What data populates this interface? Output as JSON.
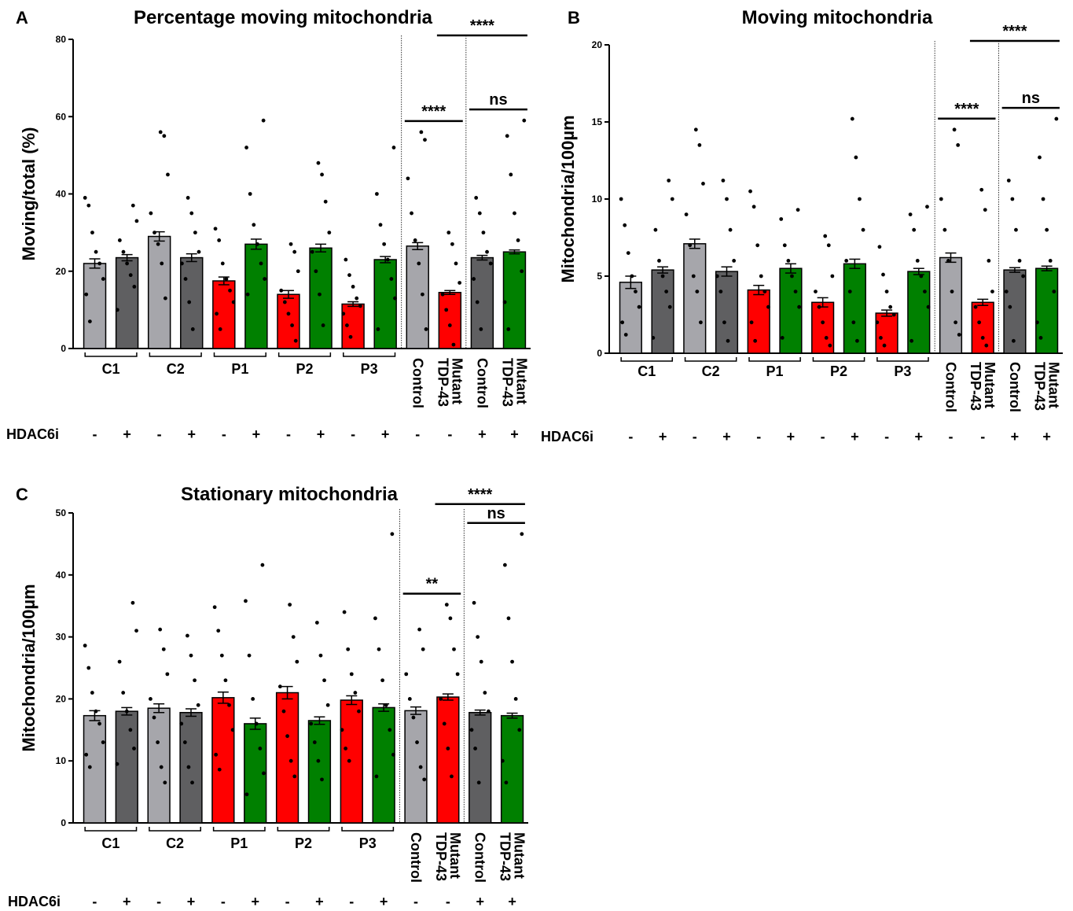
{
  "chart_data": [
    {
      "type": "bar",
      "panel": "A",
      "title": "Percentage moving mitochondria",
      "y_label": "Moving/total (%)",
      "ylim": [
        0,
        80
      ],
      "yticks": [
        0,
        20,
        40,
        60,
        80
      ],
      "groups": [
        "C1",
        "C2",
        "P1",
        "P2",
        "P3"
      ],
      "categories": [
        null,
        null,
        null,
        null,
        null,
        null,
        null,
        null,
        null,
        null,
        [
          "Control"
        ],
        [
          "Mutant",
          "TDP-43"
        ],
        [
          "Control"
        ],
        [
          "Mutant",
          "TDP-43"
        ]
      ],
      "hdac_label": "HDAC6i",
      "hdac6i": [
        "-",
        "+",
        "-",
        "+",
        "-",
        "+",
        "-",
        "+",
        "-",
        "+",
        "-",
        "-",
        "+",
        "+"
      ],
      "colors": [
        "#a6a6ab",
        "#5f5f61",
        "#a6a6ab",
        "#5f5f61",
        "#ff0000",
        "#008000",
        "#ff0000",
        "#008000",
        "#ff0000",
        "#008000",
        "#a6a6ab",
        "#ff0000",
        "#5f5f61",
        "#008000"
      ],
      "values": [
        22,
        23.5,
        29,
        23.5,
        17.5,
        27,
        14,
        26,
        11.5,
        23,
        26.5,
        14.5,
        23.5,
        25
      ],
      "errors": [
        1.2,
        0.8,
        1.2,
        1,
        1,
        1.3,
        1,
        1,
        0.6,
        0.8,
        0.9,
        0.5,
        0.6,
        0.5
      ],
      "points": [
        [
          39,
          37,
          30,
          25,
          22,
          18,
          14,
          7
        ],
        [
          37,
          33,
          28,
          25,
          22,
          19,
          16,
          10
        ],
        [
          56,
          55,
          45,
          35,
          30,
          27,
          22,
          13
        ],
        [
          39,
          35,
          30,
          25,
          22,
          18,
          12,
          5
        ],
        [
          31,
          28,
          22,
          18,
          15,
          12,
          9,
          5
        ],
        [
          59,
          52,
          40,
          32,
          27,
          22,
          18,
          14
        ],
        [
          27,
          25,
          20,
          15,
          12,
          9,
          6,
          2
        ],
        [
          48,
          45,
          38,
          30,
          25,
          20,
          14,
          6
        ],
        [
          23,
          19,
          16,
          13,
          11,
          9,
          6,
          3
        ],
        [
          52,
          40,
          32,
          27,
          23,
          18,
          13,
          5
        ],
        [
          56,
          54,
          44,
          35,
          28,
          22,
          14,
          5
        ],
        [
          30,
          27,
          22,
          17,
          14,
          10,
          6,
          1
        ],
        [
          39,
          35,
          30,
          25,
          22,
          18,
          12,
          5
        ],
        [
          59,
          55,
          45,
          35,
          28,
          20,
          12,
          5
        ]
      ],
      "annotations": [
        {
          "text": "****",
          "from": 10,
          "to": 11
        },
        {
          "text": "ns",
          "from": 12,
          "to": 13
        },
        {
          "text": "****",
          "from": 11,
          "to": 13
        }
      ]
    },
    {
      "type": "bar",
      "panel": "B",
      "title": "Moving mitochondria",
      "y_label": "Mitochondria/100µm",
      "ylim": [
        0,
        20
      ],
      "yticks": [
        0,
        5,
        10,
        15,
        20
      ],
      "groups": [
        "C1",
        "C2",
        "P1",
        "P2",
        "P3"
      ],
      "categories": [
        null,
        null,
        null,
        null,
        null,
        null,
        null,
        null,
        null,
        null,
        [
          "Control"
        ],
        [
          "Mutant",
          "TDP-43"
        ],
        [
          "Control"
        ],
        [
          "Mutant",
          "TDP-43"
        ]
      ],
      "hdac_label": "HDAC6i",
      "hdac6i": [
        "-",
        "+",
        "-",
        "+",
        "-",
        "+",
        "-",
        "+",
        "-",
        "+",
        "-",
        "-",
        "+",
        "+"
      ],
      "colors": [
        "#a6a6ab",
        "#5f5f61",
        "#a6a6ab",
        "#5f5f61",
        "#ff0000",
        "#008000",
        "#ff0000",
        "#008000",
        "#ff0000",
        "#008000",
        "#a6a6ab",
        "#ff0000",
        "#5f5f61",
        "#008000"
      ],
      "values": [
        4.6,
        5.4,
        7.1,
        5.3,
        4.1,
        5.5,
        3.3,
        5.8,
        2.6,
        5.3,
        6.2,
        3.3,
        5.4,
        5.5
      ],
      "errors": [
        0.4,
        0.2,
        0.3,
        0.3,
        0.3,
        0.3,
        0.3,
        0.3,
        0.2,
        0.2,
        0.3,
        0.2,
        0.15,
        0.15
      ],
      "points": [
        [
          10,
          8.3,
          6.5,
          5,
          4,
          3,
          2,
          1.2
        ],
        [
          11.2,
          10,
          8,
          6,
          5,
          4,
          3,
          1
        ],
        [
          14.5,
          13.5,
          11,
          9,
          7,
          5,
          4,
          2
        ],
        [
          11.2,
          10,
          8,
          6,
          5,
          4,
          2,
          0.8
        ],
        [
          10.5,
          9.5,
          7,
          5,
          4,
          3,
          2,
          0.8
        ],
        [
          9.3,
          8.7,
          7,
          6,
          5,
          4,
          3,
          1
        ],
        [
          7.6,
          7,
          5,
          4,
          3,
          2,
          1,
          0.5
        ],
        [
          15.2,
          12.7,
          10,
          8,
          6,
          4,
          2,
          0.8
        ],
        [
          6.9,
          5.1,
          4,
          3,
          2.5,
          2,
          1,
          0.5
        ],
        [
          9.5,
          9,
          8,
          6,
          5,
          4,
          3,
          0.8
        ],
        [
          14.5,
          13.5,
          10,
          8,
          6,
          4,
          2,
          1.2
        ],
        [
          10.6,
          9.3,
          6,
          4,
          3,
          2,
          1,
          0.5
        ],
        [
          11.2,
          10,
          8,
          6,
          5,
          4,
          3,
          0.8
        ],
        [
          15.2,
          12.7,
          10,
          8,
          6,
          4,
          2,
          1
        ]
      ],
      "annotations": [
        {
          "text": "****",
          "from": 10,
          "to": 11
        },
        {
          "text": "ns",
          "from": 12,
          "to": 13
        },
        {
          "text": "****",
          "from": 11,
          "to": 13
        }
      ]
    },
    {
      "type": "bar",
      "panel": "C",
      "title": "Stationary mitochondria",
      "y_label": "Mitochondria/100µm",
      "ylim": [
        0,
        50
      ],
      "yticks": [
        0,
        10,
        20,
        30,
        40,
        50
      ],
      "groups": [
        "C1",
        "C2",
        "P1",
        "P2",
        "P3"
      ],
      "categories": [
        null,
        null,
        null,
        null,
        null,
        null,
        null,
        null,
        null,
        null,
        [
          "Control"
        ],
        [
          "Mutant",
          "TDP-43"
        ],
        [
          "Control"
        ],
        [
          "Mutant",
          "TDP-43"
        ]
      ],
      "hdac_label": "HDAC6i",
      "hdac6i": [
        "-",
        "+",
        "-",
        "+",
        "-",
        "+",
        "-",
        "+",
        "-",
        "+",
        "-",
        "-",
        "+",
        "+"
      ],
      "colors": [
        "#a6a6ab",
        "#5f5f61",
        "#a6a6ab",
        "#5f5f61",
        "#ff0000",
        "#008000",
        "#ff0000",
        "#008000",
        "#ff0000",
        "#008000",
        "#a6a6ab",
        "#ff0000",
        "#5f5f61",
        "#008000"
      ],
      "values": [
        17.3,
        18,
        18.5,
        17.8,
        20.2,
        16,
        21,
        16.5,
        19.8,
        18.6,
        18.1,
        20.3,
        17.8,
        17.3
      ],
      "errors": [
        0.8,
        0.6,
        0.7,
        0.6,
        0.9,
        0.9,
        1,
        0.6,
        0.7,
        0.6,
        0.6,
        0.5,
        0.4,
        0.4
      ],
      "points": [
        [
          28.6,
          25,
          21,
          18,
          16,
          13,
          11,
          9
        ],
        [
          35.5,
          31,
          26,
          21,
          18,
          15,
          12,
          9.5
        ],
        [
          31.2,
          28,
          24,
          20,
          17,
          13,
          9,
          6.5
        ],
        [
          30.2,
          27,
          23,
          19,
          16,
          13,
          9,
          6.5
        ],
        [
          34.8,
          31,
          27,
          23,
          19,
          15,
          11,
          8.6
        ],
        [
          41.6,
          35.8,
          27,
          20,
          16,
          12,
          8,
          4.6
        ],
        [
          35.2,
          30,
          26,
          22,
          18,
          14,
          10,
          7.5
        ],
        [
          32.3,
          27,
          23,
          19,
          16,
          13,
          10,
          7
        ],
        [
          34,
          28,
          24,
          21,
          18,
          15,
          12,
          10
        ],
        [
          46.6,
          33,
          28,
          23,
          19,
          15,
          11,
          7.5
        ],
        [
          31.2,
          28,
          24,
          20,
          17,
          13,
          9,
          7
        ],
        [
          35.2,
          33,
          28,
          24,
          20,
          16,
          12,
          7.5
        ],
        [
          35.5,
          30,
          26,
          21,
          18,
          15,
          12,
          6.5
        ],
        [
          46.6,
          41.6,
          33,
          26,
          20,
          15,
          10,
          6.5
        ]
      ],
      "annotations": [
        {
          "text": "**",
          "from": 10,
          "to": 11
        },
        {
          "text": "ns",
          "from": 12,
          "to": 13
        },
        {
          "text": "****",
          "from": 11,
          "to": 13
        }
      ]
    }
  ]
}
